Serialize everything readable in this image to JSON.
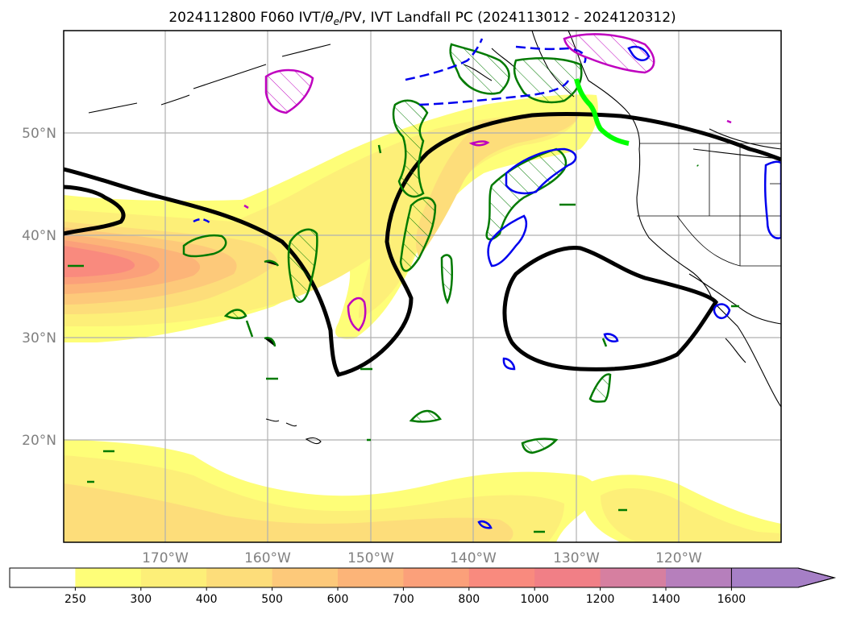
{
  "title_main": "2024112800 F060 IVT/",
  "title_theta": "θ",
  "title_sub": "e",
  "title_rest": "/PV, IVT Landfall PC (2024113012 - 2024120312)",
  "lat_labels": [
    "50°N",
    "40°N",
    "30°N",
    "20°N"
  ],
  "lon_labels": [
    "170°W",
    "160°W",
    "150°W",
    "140°W",
    "130°W",
    "120°W"
  ],
  "colorbar": {
    "ticks": [
      "250",
      "300",
      "400",
      "500",
      "600",
      "700",
      "800",
      "1000",
      "1200",
      "1400",
      "1600"
    ],
    "colors": [
      "#ffffff",
      "#fefe78",
      "#fdef78",
      "#fddd7a",
      "#fdc97a",
      "#fcb478",
      "#fba07a",
      "#f98a7e",
      "#f17f86",
      "#d67fa0",
      "#b67fbc",
      "#a67fc6"
    ],
    "extend": "max"
  },
  "colors": {
    "pv_contour": "#007a00",
    "pos_contour": "#0000ee",
    "magenta_contour": "#bf00bf",
    "landfall_line": "#00ff00",
    "theta_contour": "#000000"
  }
}
